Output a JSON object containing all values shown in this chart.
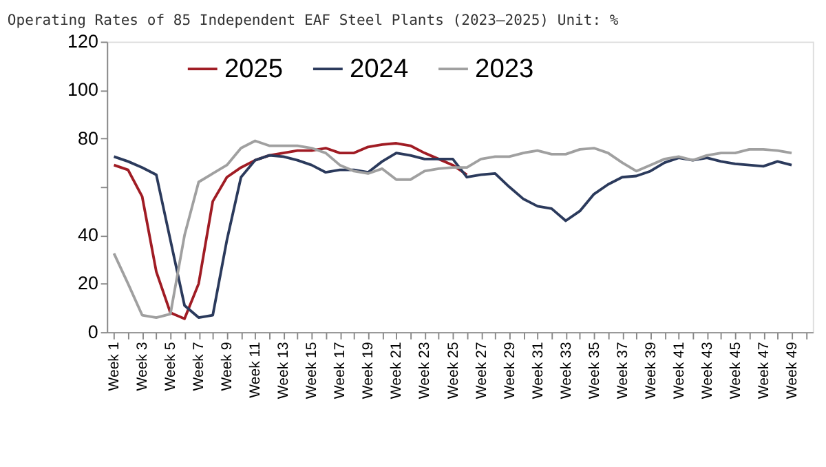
{
  "chart_data": {
    "type": "line",
    "title": "Operating Rates of 85 Independent EAF Steel Plants (2023–2025) Unit: %",
    "categories": [
      "Week 1",
      null,
      "Week 3",
      null,
      "Week 5",
      null,
      "Week 7",
      null,
      "Week 9",
      null,
      "Week 11",
      null,
      "Week 13",
      null,
      "Week 15",
      null,
      "Week 17",
      null,
      "Week 19",
      null,
      "Week 21",
      null,
      "Week 23",
      null,
      "Week 25",
      null,
      "Week 27",
      null,
      "Week 29",
      null,
      "Week 31",
      null,
      "Week 33",
      null,
      "Week 35",
      null,
      "Week 37",
      null,
      "Week 39",
      null,
      "Week 41",
      null,
      "Week 43",
      null,
      "Week 45",
      null,
      "Week 47",
      null,
      "Week 49",
      null
    ],
    "series": [
      {
        "name": "2025",
        "color": "#a01c24",
        "values": [
          69,
          67,
          56,
          25,
          8,
          5.5,
          20,
          54,
          64,
          68,
          71,
          73,
          74,
          75,
          75,
          76,
          74,
          74,
          76.5,
          77.5,
          78,
          77,
          74,
          71.5,
          69,
          65,
          null,
          null,
          null,
          null,
          null,
          null,
          null,
          null,
          null,
          null,
          null,
          null,
          null,
          null,
          null,
          null,
          null,
          null,
          null,
          null,
          null,
          null,
          null,
          null
        ]
      },
      {
        "name": "2024",
        "color": "#2b3a5c",
        "values": [
          72.5,
          70.5,
          68,
          65,
          38,
          11,
          6,
          7,
          38,
          64,
          71,
          73,
          72.5,
          71,
          69,
          66,
          67,
          67,
          66,
          70.5,
          74,
          73,
          71.5,
          71.5,
          71.5,
          64,
          65,
          65.5,
          60,
          55,
          52,
          51,
          46,
          50,
          57,
          61,
          64,
          64.5,
          66.5,
          70,
          72,
          71,
          72,
          70.5,
          69.5,
          69,
          68.5,
          70.5,
          69,
          null
        ]
      },
      {
        "name": "2023",
        "color": "#a0a0a0",
        "values": [
          32.5,
          20,
          7,
          6,
          7.5,
          40,
          62,
          65.5,
          69,
          76,
          79,
          77,
          77,
          77,
          76,
          74,
          69,
          66.5,
          65.5,
          67.5,
          63,
          63,
          66.5,
          67.5,
          68,
          68,
          71.5,
          72.5,
          72.5,
          74,
          75,
          73.5,
          73.5,
          75.5,
          76,
          74,
          70,
          66.5,
          69,
          71.5,
          72.5,
          71,
          73,
          74,
          74,
          75.5,
          75.5,
          75,
          74,
          null
        ]
      }
    ],
    "ylim": [
      0,
      120
    ],
    "yticks": [
      0,
      20,
      40,
      {
        "value": 60,
        "label": null
      },
      80,
      100,
      120
    ],
    "grid": false,
    "legend": "top",
    "line_style": "solid",
    "marker": "none"
  }
}
